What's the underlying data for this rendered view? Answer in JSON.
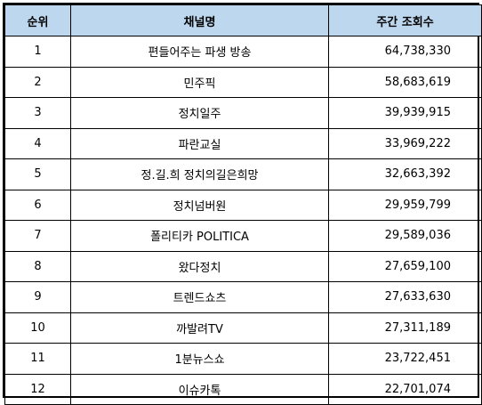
{
  "table": {
    "headers": [
      "순위",
      "채널명",
      "주간 조회수"
    ],
    "rows": [
      {
        "rank": "1",
        "channel": "편들어주는 파생 방송",
        "views": "64,738,330"
      },
      {
        "rank": "2",
        "channel": "민주픽",
        "views": "58,683,619"
      },
      {
        "rank": "3",
        "channel": "정치일주",
        "views": "39,939,915"
      },
      {
        "rank": "4",
        "channel": "파란교실",
        "views": "33,969,222"
      },
      {
        "rank": "5",
        "channel": "정.길.희 정치의길은희망",
        "views": "32,663,392"
      },
      {
        "rank": "6",
        "channel": "정치넘버원",
        "views": "29,959,799"
      },
      {
        "rank": "7",
        "channel": "폴리티카 POLITICA",
        "views": "29,589,036"
      },
      {
        "rank": "8",
        "channel": "왔다정치",
        "views": "27,659,100"
      },
      {
        "rank": "9",
        "channel": "트렌드쇼츠",
        "views": "27,633,630"
      },
      {
        "rank": "10",
        "channel": "까발려TV",
        "views": "27,311,189"
      },
      {
        "rank": "11",
        "channel": "1분뉴스쇼",
        "views": "23,722,451"
      },
      {
        "rank": "12",
        "channel": "이슈카톡",
        "views": "22,701,074"
      }
    ]
  }
}
